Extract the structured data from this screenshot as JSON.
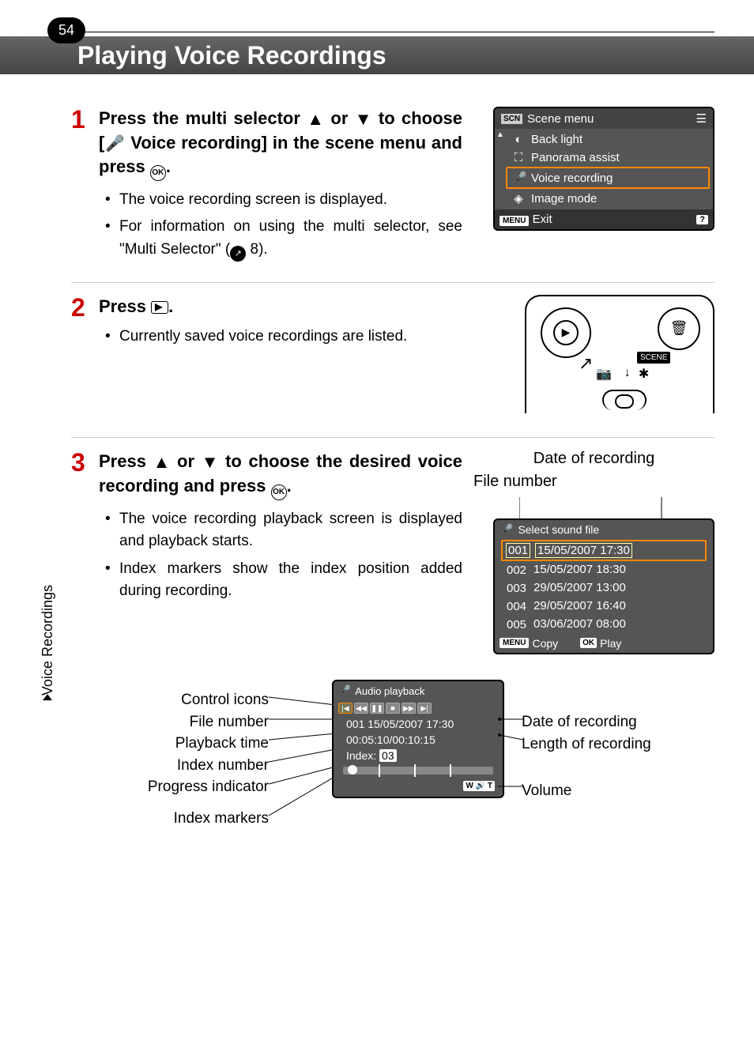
{
  "page_number": "54",
  "header_title": "Playing Voice Recordings",
  "side_tab": "Voice Recordings",
  "steps": {
    "s1": {
      "num": "1",
      "heading_parts": [
        "Press the multi selector ",
        " or ",
        " to choose [",
        " Voice recording] in the scene menu and press ",
        "."
      ],
      "bullets": [
        "The voice recording screen is displayed.",
        "For information on using the multi selector, see \"Multi Selector\" ("
      ],
      "ref_num": "8",
      "ref_suffix": ")."
    },
    "s2": {
      "num": "2",
      "heading_parts": [
        "Press ",
        "."
      ],
      "bullets": [
        "Currently saved voice recordings are listed."
      ]
    },
    "s3": {
      "num": "3",
      "heading_parts": [
        "Press ",
        " or ",
        " to choose the desired voice recording and press ",
        "."
      ],
      "bullets": [
        "The voice recording playback screen is displayed and playback starts.",
        "Index markers show the index position added during recording."
      ]
    }
  },
  "scene_menu": {
    "header": "Scene menu",
    "items": [
      {
        "icon": "◐",
        "label": "Back light",
        "selected": false
      },
      {
        "icon": "⛶",
        "label": "Panorama assist",
        "selected": false
      },
      {
        "icon": "🎤",
        "label": "Voice recording",
        "selected": true
      },
      {
        "icon": "◈",
        "label": "Image mode",
        "selected": false
      }
    ],
    "exit": "Exit",
    "help": "?"
  },
  "camera_back": {
    "scene_badge": "SCENE"
  },
  "file_list_labels": {
    "date": "Date of recording",
    "file": "File number"
  },
  "file_list": {
    "header": "Select sound file",
    "rows": [
      {
        "num": "001",
        "date": "15/05/2007",
        "time": "17:30",
        "selected": true
      },
      {
        "num": "002",
        "date": "15/05/2007",
        "time": "18:30",
        "selected": false
      },
      {
        "num": "003",
        "date": "29/05/2007",
        "time": "13:00",
        "selected": false
      },
      {
        "num": "004",
        "date": "29/05/2007",
        "time": "16:40",
        "selected": false
      },
      {
        "num": "005",
        "date": "03/06/2007",
        "time": "08:00",
        "selected": false
      }
    ],
    "footer_copy": "Copy",
    "footer_play": "Play"
  },
  "playback": {
    "header": "Audio playback",
    "file_line": "001 15/05/2007 17:30",
    "time_line": "00:05:10/00:10:15",
    "index_prefix": "Index:",
    "index_num": "03",
    "labels_left": [
      "Control icons",
      "File number",
      "Playback time",
      "Index number",
      "Progress indicator",
      "Index markers"
    ],
    "labels_right": [
      "Date of recording",
      "Length of recording",
      "Volume"
    ]
  },
  "colors": {
    "accent_red": "#cc0000",
    "selection_orange": "#ff8800",
    "lcd_bg": "#555555",
    "header_grad_top": "#666666",
    "header_grad_bottom": "#444444"
  }
}
